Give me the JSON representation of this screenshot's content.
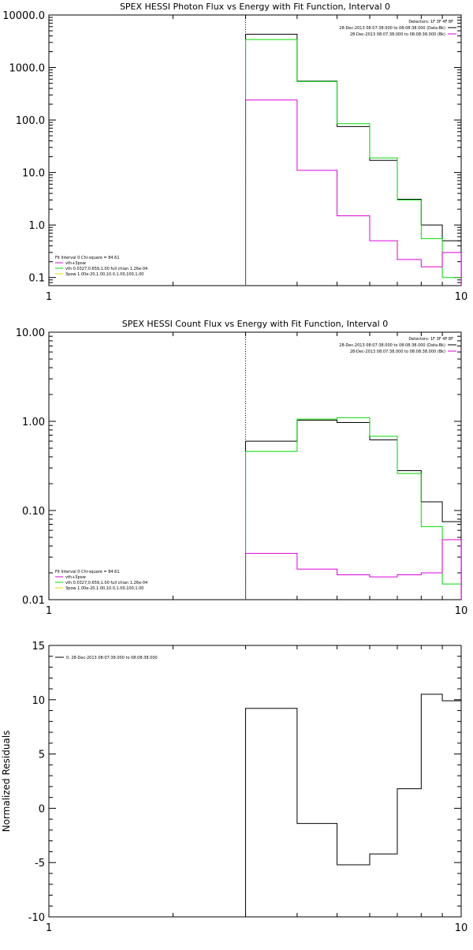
{
  "chart_data": [
    {
      "type": "line",
      "title": "SPEX HESSI Photon Flux vs Energy with Fit Function, Interval 0",
      "xscale": "log",
      "yscale": "log",
      "xlim": [
        1,
        10
      ],
      "ylim": [
        0.07,
        10000
      ],
      "x_ticks": [
        1,
        10
      ],
      "x_tick_labels": [
        "1",
        "10"
      ],
      "y_ticks": [
        0.1,
        1,
        10,
        100,
        1000,
        10000
      ],
      "y_tick_labels": [
        "0.1",
        "1.0",
        "10.0",
        "100.0",
        "1000.0",
        "10000.0"
      ],
      "vline_x": 3,
      "bin_edges": [
        3,
        4,
        5,
        6,
        7,
        8,
        9,
        10
      ],
      "series": [
        {
          "color": "#000000",
          "values": [
            4300,
            550,
            75,
            17,
            3.1,
            1.0,
            0.5
          ]
        },
        {
          "color": "#00dd00",
          "values": [
            3400,
            540,
            85,
            19,
            3.0,
            0.55,
            0.1
          ]
        },
        {
          "color": "#dd00dd",
          "values": [
            240,
            11,
            1.5,
            0.5,
            0.22,
            0.16,
            0.3
          ]
        }
      ],
      "legend_top": {
        "header": "Detectors: 1F 3F 4F 8F",
        "entries": [
          {
            "text": "28-Dec-2013 08:07:38.000 to 08:08:38.000 (Data-Bk)",
            "color": "#000000"
          },
          {
            "text": "28-Dec-2013 08:07:38.000 to 08:08:38.000 (Bk)",
            "color": "#dd00dd"
          }
        ]
      },
      "legend_bottom": {
        "header": "Fit Interval 0   Chi-square = 84.61",
        "entries": [
          {
            "text": "vth+3pow",
            "color": "#dd00dd"
          },
          {
            "text": "vth 0.0327,0.659,1.00  full chian 1.26e-04",
            "color": "#00dd00"
          },
          {
            "text": "3pow 1.00e-20,1.00,10.0,1.00,100,1.00",
            "color": "#dddd00"
          }
        ]
      }
    },
    {
      "type": "line",
      "title": "SPEX HESSI Count Flux vs Energy with Fit Function, Interval 0",
      "xscale": "log",
      "yscale": "log",
      "xlim": [
        1,
        10
      ],
      "ylim": [
        0.01,
        10
      ],
      "x_ticks": [
        1,
        10
      ],
      "x_tick_labels": [
        "1",
        "10"
      ],
      "y_ticks": [
        0.01,
        0.1,
        1,
        10
      ],
      "y_tick_labels": [
        "0.01",
        "0.10",
        "1.00",
        "10.00"
      ],
      "vline_x": 3,
      "bin_edges": [
        3,
        4,
        5,
        6,
        7,
        8,
        9,
        10
      ],
      "series": [
        {
          "color": "#000000",
          "values": [
            0.6,
            1.03,
            0.97,
            0.62,
            0.28,
            0.125,
            0.075
          ]
        },
        {
          "color": "#00dd00",
          "values": [
            0.46,
            1.06,
            1.1,
            0.68,
            0.26,
            0.066,
            0.015
          ]
        },
        {
          "color": "#dd00dd",
          "values": [
            0.033,
            0.022,
            0.019,
            0.018,
            0.019,
            0.02,
            0.047
          ]
        }
      ],
      "legend_top": {
        "header": "Detectors: 1F 3F 4F 8F",
        "entries": [
          {
            "text": "28-Dec-2013 08:07:38.000 to 08:08:38.000 (Data-Bk)",
            "color": "#000000"
          },
          {
            "text": "28-Dec-2013 08:07:38.000 to 08:08:38.000 (Bk)",
            "color": "#dd00dd"
          }
        ]
      },
      "legend_bottom": {
        "header": "Fit Interval 0   Chi-square = 84.61",
        "entries": [
          {
            "text": "vth+3pow",
            "color": "#dd00dd"
          },
          {
            "text": "vth 0.0327,0.659,1.00  full chian 1.26e-04",
            "color": "#00dd00"
          },
          {
            "text": "3pow 1.00e-20,1.00,10.0,1.00,100,1.00",
            "color": "#dddd00"
          }
        ]
      }
    },
    {
      "type": "line",
      "title": "",
      "ylabel": "Normalized Residuals",
      "xscale": "log",
      "yscale": "linear",
      "xlim": [
        1,
        10
      ],
      "ylim": [
        -10,
        15
      ],
      "x_ticks": [
        1,
        10
      ],
      "x_tick_labels": [
        "1",
        "10"
      ],
      "y_ticks": [
        -10,
        -5,
        0,
        5,
        10,
        15
      ],
      "y_tick_labels": [
        "-10",
        "-5",
        "0",
        "5",
        "10",
        "15"
      ],
      "bin_edges": [
        3,
        4,
        5,
        6,
        7,
        8,
        9,
        10
      ],
      "series": [
        {
          "color": "#000000",
          "values": [
            9.2,
            -1.4,
            -5.2,
            -4.2,
            1.8,
            10.5,
            9.9
          ]
        }
      ],
      "legend_top": {
        "header": "",
        "entries": [
          {
            "text": "0. 28-Dec-2013 08:07:38.000 to 08:08:38.000",
            "color": "#000000"
          }
        ]
      }
    }
  ]
}
